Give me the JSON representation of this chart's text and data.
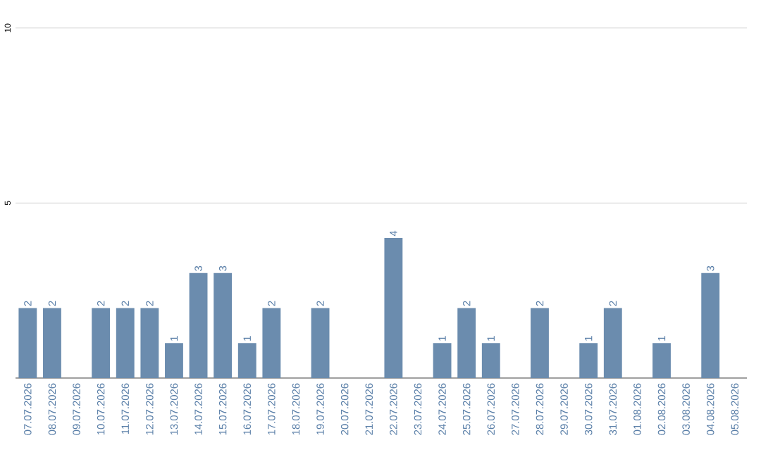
{
  "chart_data": {
    "type": "bar",
    "categories": [
      "07.07.2026",
      "08.07.2026",
      "09.07.2026",
      "10.07.2026",
      "11.07.2026",
      "12.07.2026",
      "13.07.2026",
      "14.07.2026",
      "15.07.2026",
      "16.07.2026",
      "17.07.2026",
      "18.07.2026",
      "19.07.2026",
      "20.07.2026",
      "21.07.2026",
      "22.07.2026",
      "23.07.2026",
      "24.07.2026",
      "25.07.2026",
      "26.07.2026",
      "27.07.2026",
      "28.07.2026",
      "29.07.2026",
      "30.07.2026",
      "31.07.2026",
      "01.08.2026",
      "02.08.2026",
      "03.08.2026",
      "04.08.2026",
      "05.08.2026"
    ],
    "values": [
      2,
      2,
      0,
      2,
      2,
      2,
      1,
      3,
      3,
      1,
      2,
      0,
      2,
      0,
      0,
      4,
      0,
      1,
      2,
      1,
      0,
      2,
      0,
      1,
      2,
      0,
      1,
      0,
      3,
      0
    ],
    "value_labels": [
      "2",
      "2",
      null,
      "2",
      "2",
      "2",
      "1",
      "3",
      "3",
      "1",
      "2",
      null,
      "2",
      null,
      null,
      "4",
      null,
      "1",
      "2",
      "1",
      null,
      "2",
      null,
      "1",
      "2",
      null,
      "1",
      null,
      "3",
      null
    ],
    "color": "#6b8cae",
    "ylim": [
      0,
      10
    ],
    "yticks": [
      5,
      10
    ],
    "grid": "y"
  }
}
